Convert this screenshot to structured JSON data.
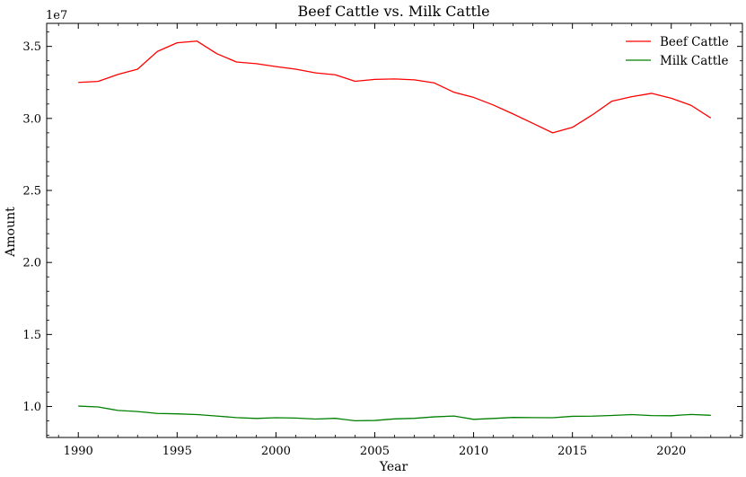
{
  "chart_data": {
    "type": "line",
    "title": "Beef Cattle vs. Milk Cattle",
    "xlabel": "Year",
    "ylabel": "Amount",
    "y_offset_label": "1e7",
    "xlim": [
      1988.4,
      2023.6
    ],
    "ylim": [
      7.85,
      36.6
    ],
    "y_scale_factor": 1000000,
    "xticks": [
      1990,
      1995,
      2000,
      2005,
      2010,
      2015,
      2020
    ],
    "yticks": [
      10,
      15,
      20,
      25,
      30,
      35
    ],
    "ytick_labels": [
      "1.0",
      "1.5",
      "2.0",
      "2.5",
      "3.0",
      "3.5"
    ],
    "grid": false,
    "legend_position": "top-right",
    "x": [
      1990,
      1991,
      1992,
      1993,
      1994,
      1995,
      1996,
      1997,
      1998,
      1999,
      2000,
      2001,
      2002,
      2003,
      2004,
      2005,
      2006,
      2007,
      2008,
      2009,
      2010,
      2011,
      2012,
      2013,
      2014,
      2015,
      2016,
      2017,
      2018,
      2019,
      2020,
      2021,
      2022
    ],
    "series": [
      {
        "name": "Beef Cattle",
        "color": "#ff0000",
        "values": [
          32500000,
          32570000,
          33050000,
          33420000,
          34650000,
          35250000,
          35370000,
          34500000,
          33920000,
          33800000,
          33600000,
          33420000,
          33160000,
          33030000,
          32580000,
          32710000,
          32740000,
          32680000,
          32470000,
          31820000,
          31460000,
          30930000,
          30310000,
          29660000,
          29000000,
          29380000,
          30240000,
          31200000,
          31510000,
          31740000,
          31400000,
          30910000,
          30030000
        ]
      },
      {
        "name": "Milk Cattle",
        "color": "#008000",
        "values": [
          10030000,
          9970000,
          9730000,
          9650000,
          9520000,
          9490000,
          9440000,
          9340000,
          9230000,
          9170000,
          9220000,
          9200000,
          9130000,
          9180000,
          9010000,
          9030000,
          9140000,
          9180000,
          9280000,
          9340000,
          9110000,
          9170000,
          9240000,
          9230000,
          9220000,
          9320000,
          9330000,
          9380000,
          9440000,
          9370000,
          9360000,
          9450000,
          9390000
        ]
      }
    ]
  }
}
